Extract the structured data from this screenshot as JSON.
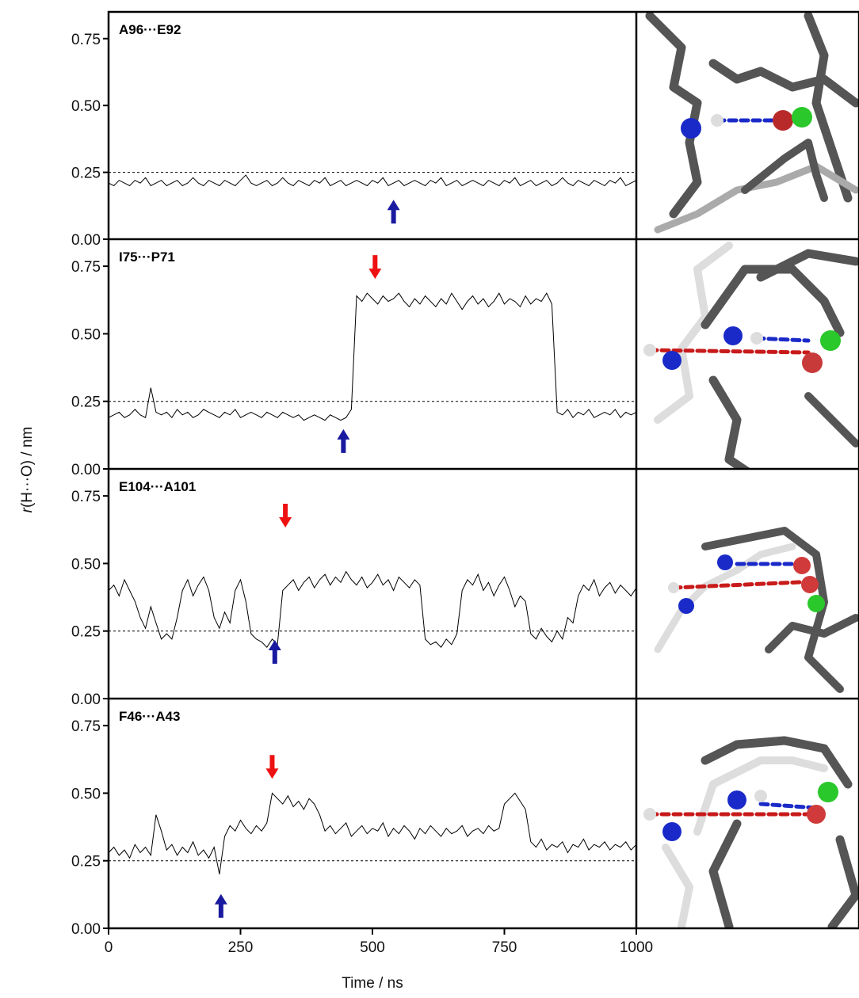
{
  "ylabel_symbol": "r",
  "ylabel": "(H···O) / nm",
  "chart_data": [
    {
      "type": "line",
      "title": "A96···E92",
      "color": "#000000",
      "threshold": 0.25,
      "ylim": [
        0,
        0.85
      ],
      "yticks": [
        {
          "value": 0,
          "label": "0.00"
        },
        {
          "value": 0.25,
          "label": "0.25"
        },
        {
          "value": 0.5,
          "label": "0.50"
        },
        {
          "value": 0.75,
          "label": "0.75"
        }
      ],
      "x": [
        0,
        10,
        20,
        30,
        40,
        50,
        60,
        70,
        80,
        90,
        100,
        110,
        120,
        130,
        140,
        150,
        160,
        170,
        180,
        190,
        200,
        210,
        220,
        230,
        240,
        250,
        260,
        270,
        280,
        290,
        300,
        310,
        320,
        330,
        340,
        350,
        360,
        370,
        380,
        390,
        400,
        410,
        420,
        430,
        440,
        450,
        460,
        470,
        480,
        490,
        500,
        510,
        520,
        530,
        540,
        550,
        560,
        570,
        580,
        590,
        600,
        610,
        620,
        630,
        640,
        650,
        660,
        670,
        680,
        690,
        700,
        710,
        720,
        730,
        740,
        750,
        760,
        770,
        780,
        790,
        800,
        810,
        820,
        830,
        840,
        850,
        860,
        870,
        880,
        890,
        900,
        910,
        920,
        930,
        940,
        950,
        960,
        970,
        980,
        990,
        1000
      ],
      "values": [
        0.21,
        0.2,
        0.22,
        0.21,
        0.2,
        0.22,
        0.21,
        0.23,
        0.2,
        0.21,
        0.22,
        0.2,
        0.21,
        0.22,
        0.2,
        0.21,
        0.23,
        0.21,
        0.2,
        0.22,
        0.21,
        0.2,
        0.22,
        0.21,
        0.2,
        0.22,
        0.24,
        0.21,
        0.2,
        0.21,
        0.22,
        0.2,
        0.21,
        0.23,
        0.21,
        0.2,
        0.22,
        0.21,
        0.2,
        0.22,
        0.21,
        0.23,
        0.2,
        0.21,
        0.22,
        0.2,
        0.21,
        0.22,
        0.21,
        0.2,
        0.22,
        0.21,
        0.23,
        0.2,
        0.21,
        0.22,
        0.2,
        0.21,
        0.22,
        0.21,
        0.2,
        0.22,
        0.21,
        0.23,
        0.2,
        0.21,
        0.22,
        0.2,
        0.21,
        0.22,
        0.21,
        0.2,
        0.22,
        0.21,
        0.2,
        0.22,
        0.21,
        0.23,
        0.2,
        0.21,
        0.22,
        0.2,
        0.21,
        0.22,
        0.2,
        0.21,
        0.23,
        0.21,
        0.2,
        0.22,
        0.21,
        0.2,
        0.22,
        0.21,
        0.2,
        0.22,
        0.21,
        0.23,
        0.2,
        0.21,
        0.22
      ],
      "up_arrows": [
        {
          "x": 540,
          "y": 0.1,
          "color": "#1a1aa0"
        }
      ],
      "down_arrows": []
    },
    {
      "type": "line",
      "title": "I75···P71",
      "color": "#000000",
      "threshold": 0.25,
      "ylim": [
        0,
        0.85
      ],
      "yticks": [
        {
          "value": 0,
          "label": "0.00"
        },
        {
          "value": 0.25,
          "label": "0.25"
        },
        {
          "value": 0.5,
          "label": "0.50"
        },
        {
          "value": 0.75,
          "label": "0.75"
        }
      ],
      "x": [
        0,
        10,
        20,
        30,
        40,
        50,
        60,
        70,
        80,
        90,
        100,
        110,
        120,
        130,
        140,
        150,
        160,
        170,
        180,
        190,
        200,
        210,
        220,
        230,
        240,
        250,
        260,
        270,
        280,
        290,
        300,
        310,
        320,
        330,
        340,
        350,
        360,
        370,
        380,
        390,
        400,
        410,
        420,
        430,
        440,
        450,
        460,
        470,
        480,
        490,
        500,
        510,
        520,
        530,
        540,
        550,
        560,
        570,
        580,
        590,
        600,
        610,
        620,
        630,
        640,
        650,
        660,
        670,
        680,
        690,
        700,
        710,
        720,
        730,
        740,
        750,
        760,
        770,
        780,
        790,
        800,
        810,
        820,
        830,
        840,
        850,
        860,
        870,
        880,
        890,
        900,
        910,
        920,
        930,
        940,
        950,
        960,
        970,
        980,
        990,
        1000
      ],
      "values": [
        0.19,
        0.2,
        0.21,
        0.19,
        0.2,
        0.22,
        0.2,
        0.19,
        0.3,
        0.21,
        0.2,
        0.21,
        0.19,
        0.22,
        0.2,
        0.21,
        0.19,
        0.2,
        0.22,
        0.21,
        0.2,
        0.19,
        0.21,
        0.2,
        0.22,
        0.19,
        0.2,
        0.21,
        0.2,
        0.19,
        0.21,
        0.2,
        0.19,
        0.21,
        0.2,
        0.19,
        0.2,
        0.18,
        0.19,
        0.2,
        0.19,
        0.18,
        0.2,
        0.19,
        0.18,
        0.19,
        0.22,
        0.64,
        0.62,
        0.65,
        0.63,
        0.61,
        0.64,
        0.62,
        0.63,
        0.65,
        0.62,
        0.6,
        0.63,
        0.61,
        0.64,
        0.62,
        0.6,
        0.63,
        0.61,
        0.65,
        0.62,
        0.59,
        0.62,
        0.64,
        0.61,
        0.63,
        0.6,
        0.62,
        0.65,
        0.61,
        0.63,
        0.62,
        0.6,
        0.64,
        0.61,
        0.63,
        0.62,
        0.65,
        0.61,
        0.21,
        0.2,
        0.22,
        0.19,
        0.21,
        0.2,
        0.22,
        0.19,
        0.2,
        0.21,
        0.2,
        0.22,
        0.19,
        0.21,
        0.2,
        0.21
      ],
      "up_arrows": [
        {
          "x": 445,
          "y": 0.1,
          "color": "#1a1aa0"
        }
      ],
      "down_arrows": [
        {
          "x": 505,
          "y": 0.75,
          "color": "#ee1111"
        }
      ]
    },
    {
      "type": "line",
      "title": "E104···A101",
      "color": "#000000",
      "threshold": 0.25,
      "ylim": [
        0,
        0.85
      ],
      "yticks": [
        {
          "value": 0,
          "label": "0.00"
        },
        {
          "value": 0.25,
          "label": "0.25"
        },
        {
          "value": 0.5,
          "label": "0.50"
        },
        {
          "value": 0.75,
          "label": "0.75"
        }
      ],
      "x": [
        0,
        10,
        20,
        30,
        40,
        50,
        60,
        70,
        80,
        90,
        100,
        110,
        120,
        130,
        140,
        150,
        160,
        170,
        180,
        190,
        200,
        210,
        220,
        230,
        240,
        250,
        260,
        270,
        280,
        290,
        300,
        310,
        320,
        330,
        340,
        350,
        360,
        370,
        380,
        390,
        400,
        410,
        420,
        430,
        440,
        450,
        460,
        470,
        480,
        490,
        500,
        510,
        520,
        530,
        540,
        550,
        560,
        570,
        580,
        590,
        600,
        610,
        620,
        630,
        640,
        650,
        660,
        670,
        680,
        690,
        700,
        710,
        720,
        730,
        740,
        750,
        760,
        770,
        780,
        790,
        800,
        810,
        820,
        830,
        840,
        850,
        860,
        870,
        880,
        890,
        900,
        910,
        920,
        930,
        940,
        950,
        960,
        970,
        980,
        990,
        1000
      ],
      "values": [
        0.4,
        0.42,
        0.38,
        0.44,
        0.4,
        0.36,
        0.3,
        0.26,
        0.34,
        0.28,
        0.22,
        0.24,
        0.22,
        0.3,
        0.4,
        0.44,
        0.38,
        0.42,
        0.45,
        0.4,
        0.3,
        0.26,
        0.32,
        0.28,
        0.4,
        0.44,
        0.36,
        0.24,
        0.22,
        0.21,
        0.19,
        0.22,
        0.2,
        0.4,
        0.42,
        0.44,
        0.4,
        0.43,
        0.45,
        0.41,
        0.44,
        0.46,
        0.42,
        0.45,
        0.43,
        0.47,
        0.44,
        0.42,
        0.45,
        0.41,
        0.43,
        0.46,
        0.42,
        0.44,
        0.4,
        0.45,
        0.43,
        0.41,
        0.44,
        0.42,
        0.22,
        0.2,
        0.21,
        0.19,
        0.22,
        0.2,
        0.24,
        0.4,
        0.44,
        0.42,
        0.46,
        0.4,
        0.43,
        0.38,
        0.42,
        0.45,
        0.4,
        0.34,
        0.38,
        0.36,
        0.24,
        0.22,
        0.26,
        0.23,
        0.21,
        0.25,
        0.22,
        0.3,
        0.28,
        0.38,
        0.42,
        0.4,
        0.44,
        0.38,
        0.41,
        0.43,
        0.39,
        0.42,
        0.4,
        0.38,
        0.41
      ],
      "up_arrows": [
        {
          "x": 315,
          "y": 0.17,
          "color": "#1a1aa0"
        }
      ],
      "down_arrows": [
        {
          "x": 335,
          "y": 0.68,
          "color": "#ee1111"
        }
      ]
    },
    {
      "type": "line",
      "title": "F46···A43",
      "color": "#000000",
      "threshold": 0.25,
      "ylim": [
        0,
        0.85
      ],
      "yticks": [
        {
          "value": 0,
          "label": "0.00"
        },
        {
          "value": 0.25,
          "label": "0.25"
        },
        {
          "value": 0.5,
          "label": "0.50"
        },
        {
          "value": 0.75,
          "label": "0.75"
        }
      ],
      "xlim": [
        0,
        1000
      ],
      "xticks": [
        0,
        250,
        500,
        750,
        1000
      ],
      "xlabel": "Time / ns",
      "x": [
        0,
        10,
        20,
        30,
        40,
        50,
        60,
        70,
        80,
        90,
        100,
        110,
        120,
        130,
        140,
        150,
        160,
        170,
        180,
        190,
        200,
        210,
        220,
        230,
        240,
        250,
        260,
        270,
        280,
        290,
        300,
        310,
        320,
        330,
        340,
        350,
        360,
        370,
        380,
        390,
        400,
        410,
        420,
        430,
        440,
        450,
        460,
        470,
        480,
        490,
        500,
        510,
        520,
        530,
        540,
        550,
        560,
        570,
        580,
        590,
        600,
        610,
        620,
        630,
        640,
        650,
        660,
        670,
        680,
        690,
        700,
        710,
        720,
        730,
        740,
        750,
        760,
        770,
        780,
        790,
        800,
        810,
        820,
        830,
        840,
        850,
        860,
        870,
        880,
        890,
        900,
        910,
        920,
        930,
        940,
        950,
        960,
        970,
        980,
        990,
        1000
      ],
      "values": [
        0.28,
        0.3,
        0.27,
        0.29,
        0.26,
        0.31,
        0.28,
        0.3,
        0.27,
        0.42,
        0.36,
        0.29,
        0.31,
        0.27,
        0.3,
        0.28,
        0.32,
        0.27,
        0.29,
        0.26,
        0.3,
        0.2,
        0.34,
        0.38,
        0.36,
        0.4,
        0.37,
        0.35,
        0.38,
        0.36,
        0.39,
        0.5,
        0.48,
        0.46,
        0.49,
        0.45,
        0.47,
        0.44,
        0.48,
        0.46,
        0.42,
        0.36,
        0.38,
        0.35,
        0.37,
        0.39,
        0.34,
        0.36,
        0.38,
        0.35,
        0.37,
        0.36,
        0.39,
        0.34,
        0.37,
        0.35,
        0.38,
        0.36,
        0.33,
        0.37,
        0.35,
        0.38,
        0.36,
        0.34,
        0.37,
        0.35,
        0.36,
        0.38,
        0.34,
        0.36,
        0.37,
        0.35,
        0.38,
        0.36,
        0.37,
        0.46,
        0.48,
        0.5,
        0.47,
        0.44,
        0.32,
        0.3,
        0.33,
        0.29,
        0.31,
        0.3,
        0.32,
        0.28,
        0.31,
        0.3,
        0.33,
        0.29,
        0.31,
        0.3,
        0.32,
        0.29,
        0.31,
        0.3,
        0.32,
        0.29,
        0.31
      ],
      "up_arrows": [
        {
          "x": 213,
          "y": 0.08,
          "color": "#1a1aa0"
        }
      ],
      "down_arrows": [
        {
          "x": 310,
          "y": 0.6,
          "color": "#ee1111"
        }
      ]
    }
  ]
}
